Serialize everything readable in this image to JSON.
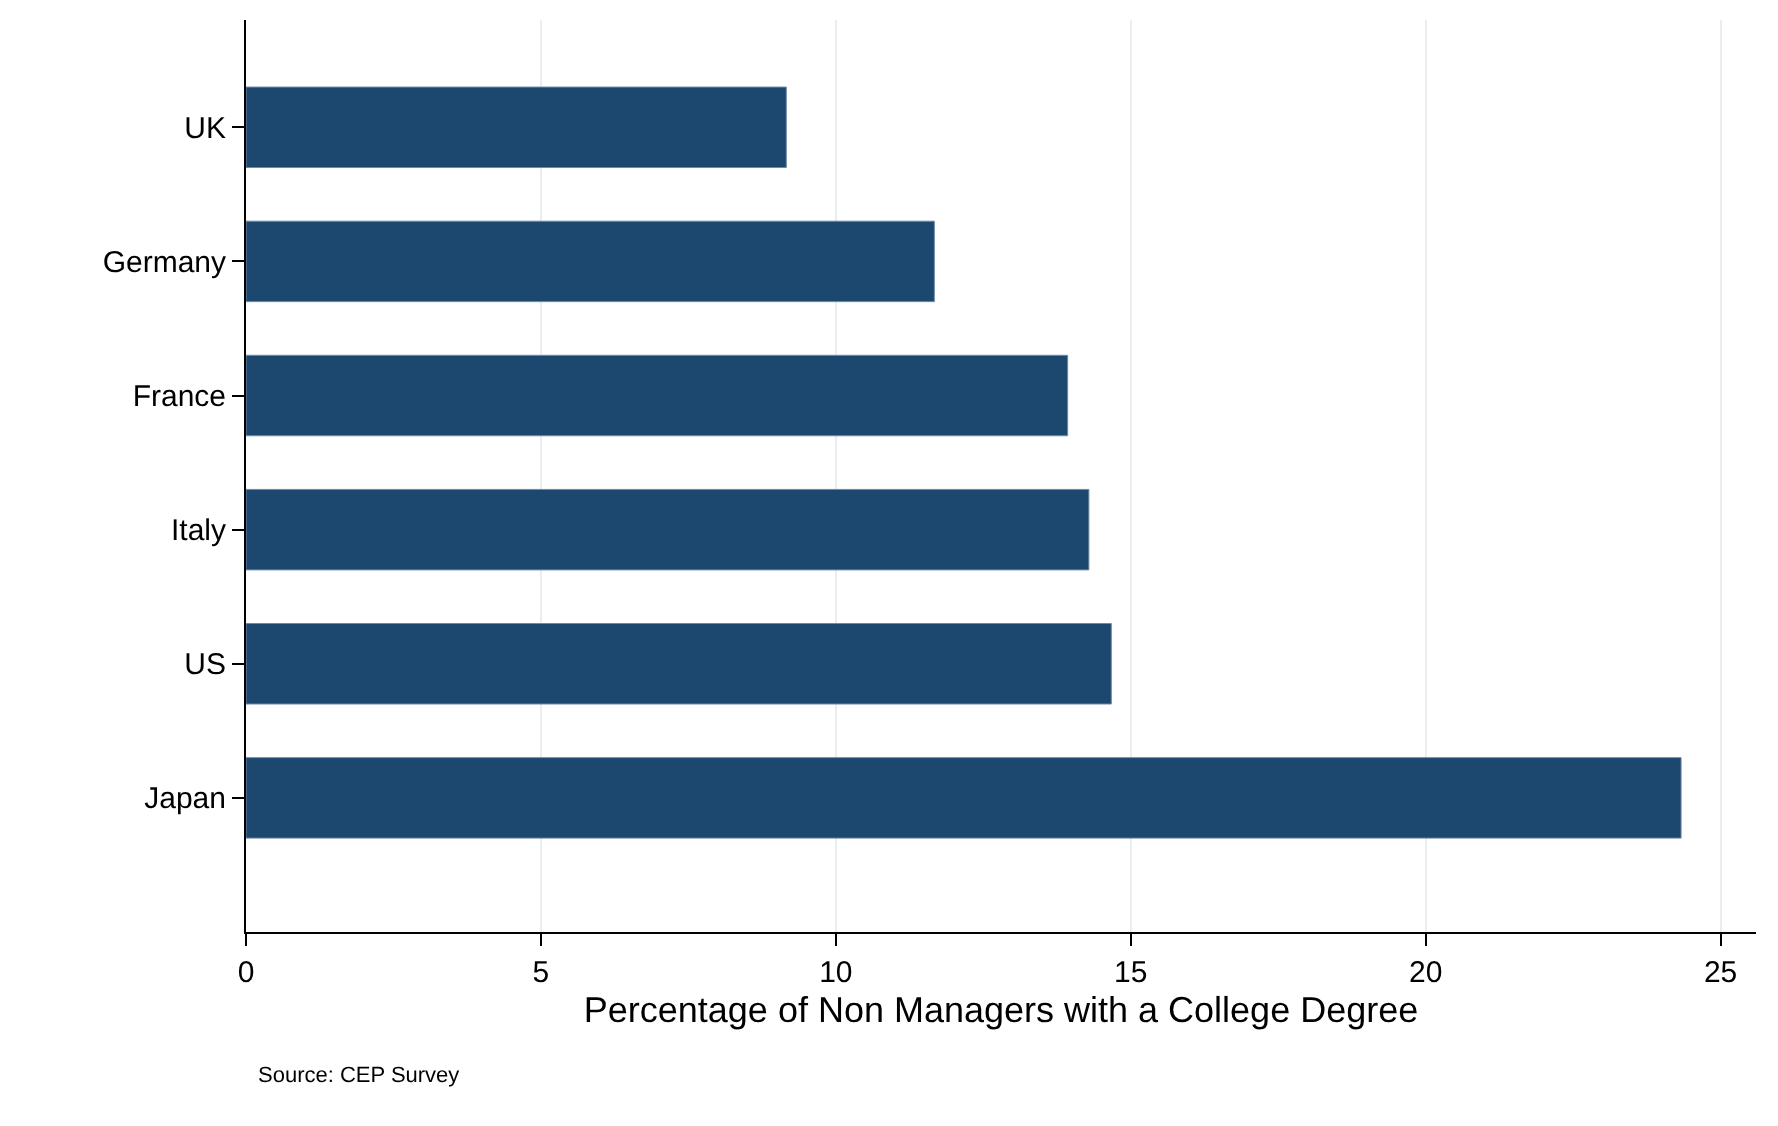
{
  "chart_data": {
    "type": "bar",
    "orientation": "horizontal",
    "categories": [
      "UK",
      "Germany",
      "France",
      "Italy",
      "US",
      "Japan"
    ],
    "values": [
      9.16,
      11.67,
      13.93,
      14.29,
      14.67,
      24.33
    ],
    "color": "#1c476f",
    "xlabel": "Percentage of Non Managers with a College Degree",
    "xlim": [
      0,
      25.6
    ],
    "xticks": [
      0,
      5,
      10,
      15,
      20,
      25
    ],
    "grid": "x",
    "annotations": [
      "Source: CEP Survey"
    ]
  }
}
